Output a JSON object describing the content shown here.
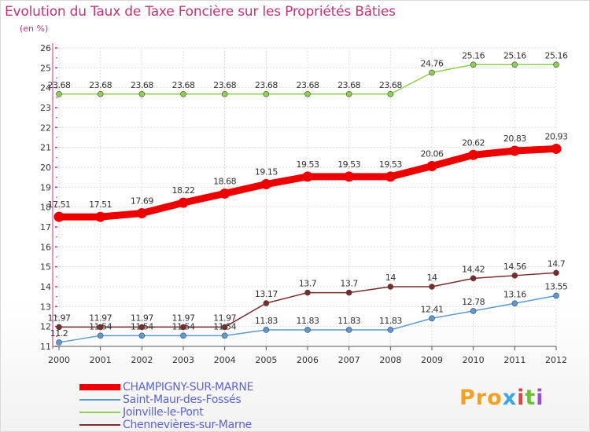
{
  "title": "Evolution du Taux de Taxe Foncière sur les Propriétés Bâties",
  "unit_label": "(en %)",
  "logo": {
    "text": "Proxiti",
    "colors": [
      "#f4a020",
      "#f4a020",
      "#f4a020",
      "#3aa7e0",
      "#e83e3e",
      "#6dbf3a",
      "#9c4fd1"
    ]
  },
  "chart_data": {
    "type": "line",
    "x": [
      2000,
      2001,
      2002,
      2003,
      2004,
      2005,
      2006,
      2007,
      2008,
      2009,
      2010,
      2011,
      2012
    ],
    "ylim": [
      11,
      26
    ],
    "yticks": [
      11,
      12,
      13,
      14,
      15,
      16,
      17,
      18,
      19,
      20,
      21,
      22,
      23,
      24,
      25,
      26
    ],
    "grid": true,
    "legend_position": "bottom-left",
    "series": [
      {
        "name": "CHAMPIGNY-SUR-MARNE",
        "color": "#ee0000",
        "line_width": 9,
        "marker_radius": 6.5,
        "values": [
          17.51,
          17.51,
          17.69,
          18.22,
          18.68,
          19.15,
          19.53,
          19.53,
          19.53,
          20.06,
          20.62,
          20.83,
          20.93
        ],
        "labels": [
          "17.51",
          "17.51",
          "17.69",
          "18.22",
          "18.68",
          "19.15",
          "19.53",
          "19.53",
          "19.53",
          "20.06",
          "20.62",
          "20.83",
          "20.93"
        ]
      },
      {
        "name": "Saint-Maur-des-Fossés",
        "color": "#5b9bd5",
        "line_width": 1.5,
        "marker_radius": 3.5,
        "values": [
          11.2,
          11.54,
          11.54,
          11.54,
          11.54,
          11.83,
          11.83,
          11.83,
          11.83,
          12.41,
          12.78,
          13.16,
          13.55
        ],
        "labels": [
          "11.2",
          "11.54",
          "11.54",
          "11.54",
          "11.54",
          "11.83",
          "11.83",
          "11.83",
          "11.83",
          "12.41",
          "12.78",
          "13.16",
          "13.55"
        ]
      },
      {
        "name": "Joinville-le-Pont",
        "color": "#8fd14f",
        "line_width": 1.5,
        "marker_radius": 3.5,
        "values": [
          23.68,
          23.68,
          23.68,
          23.68,
          23.68,
          23.68,
          23.68,
          23.68,
          23.68,
          24.76,
          25.16,
          25.16,
          25.16
        ],
        "labels": [
          "23.68",
          "23.68",
          "23.68",
          "23.68",
          "23.68",
          "23.68",
          "23.68",
          "23.68",
          "23.68",
          "24.76",
          "25.16",
          "25.16",
          "25.16"
        ]
      },
      {
        "name": "Chennevières-sur-Marne",
        "color": "#7a2b2b",
        "line_width": 1.5,
        "marker_radius": 3.5,
        "values": [
          11.97,
          11.97,
          11.97,
          11.97,
          11.97,
          13.17,
          13.7,
          13.7,
          14,
          14,
          14.42,
          14.56,
          14.7
        ],
        "labels": [
          "11.97",
          "11.97",
          "11.97",
          "11.97",
          "11.97",
          "13.17",
          "13.7",
          "13.7",
          "14",
          "14",
          "14.42",
          "14.56",
          "14.7"
        ]
      }
    ]
  }
}
